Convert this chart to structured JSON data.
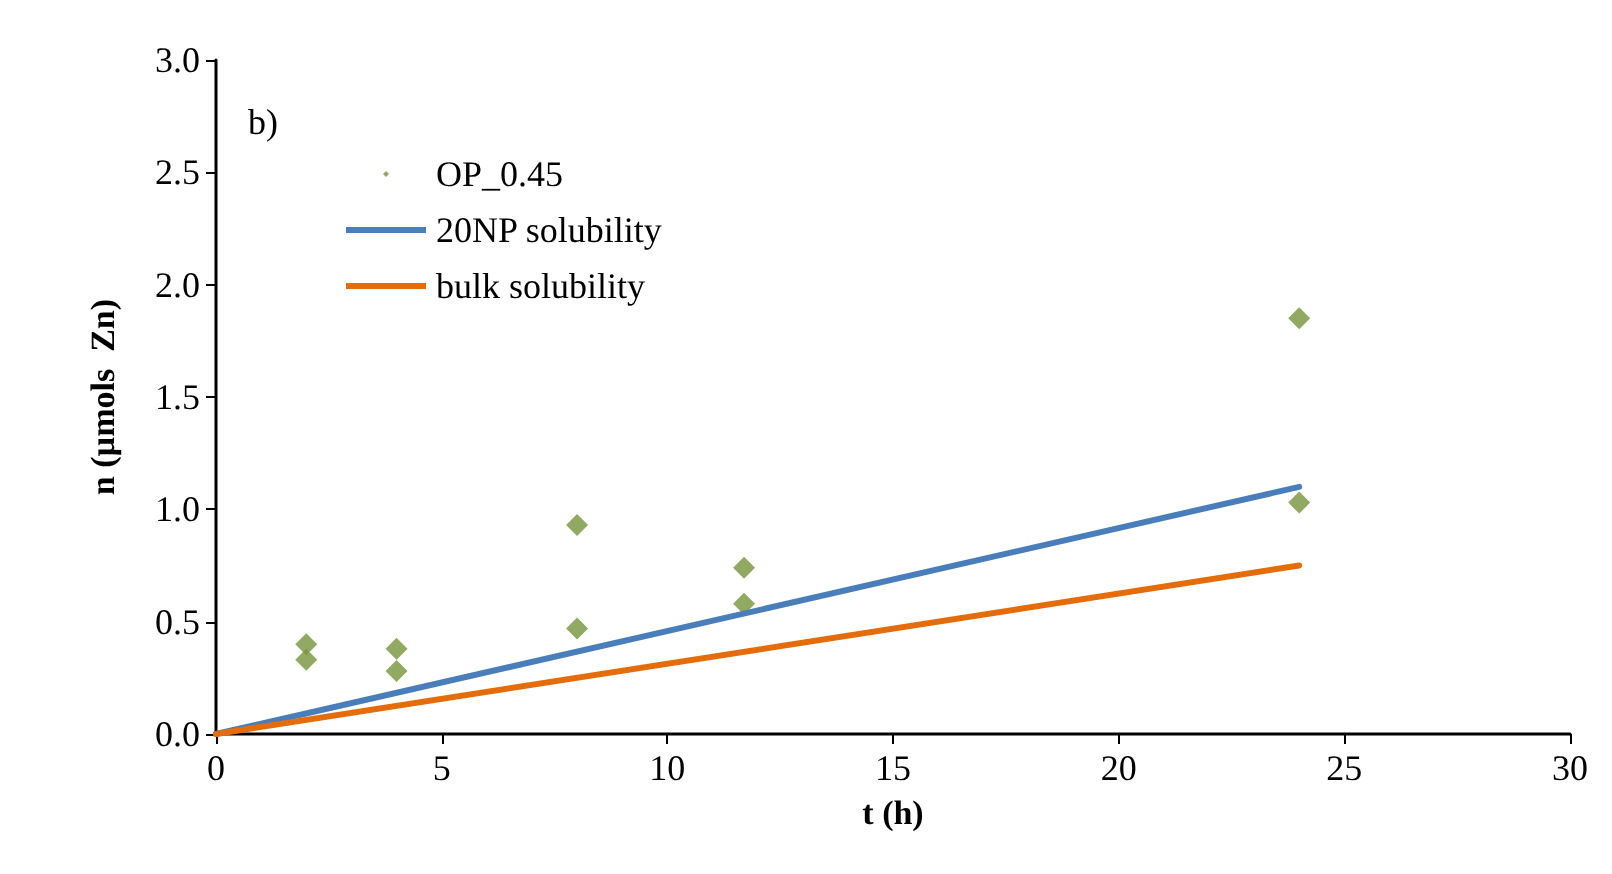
{
  "chart_data": {
    "type": "scatter",
    "xlabel": "t (h)",
    "ylabel": "n (µmols  Zn)",
    "annotations": [
      "b)"
    ],
    "xlim": [
      0,
      30
    ],
    "xticks": [
      0,
      5,
      10,
      15,
      20,
      25,
      30
    ],
    "ylim": [
      0,
      3.0
    ],
    "yticks": [
      {
        "value": 0,
        "label": "0.0"
      },
      {
        "value": 0.5,
        "label": "0.5"
      },
      {
        "value": 1.0,
        "label": "1.0"
      },
      {
        "value": 1.5,
        "label": "1.5"
      },
      {
        "value": 2.0,
        "label": "2.0"
      },
      {
        "value": 2.5,
        "label": "2.5"
      },
      {
        "value": 3.0,
        "label": "3.0"
      }
    ],
    "grid": false,
    "legend": "top left",
    "series": [
      {
        "name": "OP_0.45",
        "marker": "diamond",
        "color": "#77933c",
        "x": [
          2,
          2,
          4,
          4,
          8,
          8,
          11.7,
          11.7,
          24,
          24
        ],
        "values": [
          0.4,
          0.33,
          0.38,
          0.28,
          0.93,
          0.47,
          0.74,
          0.58,
          1.85,
          1.03
        ]
      },
      {
        "name": "20NP solubility",
        "type": "line",
        "marker": "none",
        "color": "#4a7ebb",
        "x": [
          0,
          24
        ],
        "values": [
          0,
          1.1
        ]
      },
      {
        "name": "bulk solubility",
        "type": "line",
        "marker": "none",
        "color": "#e46c0a",
        "x": [
          0,
          24
        ],
        "values": [
          0,
          0.75
        ]
      }
    ]
  }
}
